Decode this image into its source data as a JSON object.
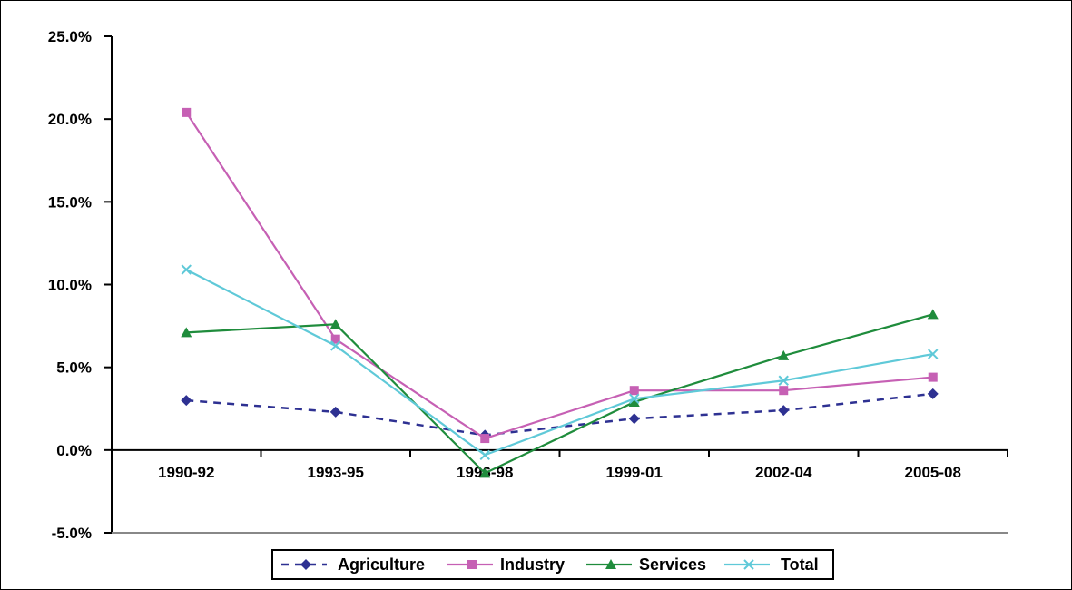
{
  "chart_data": {
    "type": "line",
    "title": "",
    "xlabel": "",
    "ylabel": "",
    "categories": [
      "1990-92",
      "1993-95",
      "1996-98",
      "1999-01",
      "2002-04",
      "2005-08"
    ],
    "y_ticks": [
      "25.0%",
      "20.0%",
      "15.0%",
      "10.0%",
      "5.0%",
      "0.0%",
      "-5.0%"
    ],
    "ylim": [
      -5,
      25
    ],
    "grid": false,
    "legend_position": "bottom",
    "series": [
      {
        "name": "Agriculture",
        "values": [
          3.0,
          2.3,
          0.9,
          1.9,
          2.4,
          3.4
        ],
        "color": "#2e3192",
        "marker": "diamond",
        "line": "dashed"
      },
      {
        "name": "Industry",
        "values": [
          20.4,
          6.7,
          0.7,
          3.6,
          3.6,
          4.4
        ],
        "color": "#c660b4",
        "marker": "square",
        "line": "solid"
      },
      {
        "name": "Services",
        "values": [
          7.1,
          7.6,
          -1.4,
          2.9,
          5.7,
          8.2
        ],
        "color": "#1f8c3c",
        "marker": "triangle",
        "line": "solid"
      },
      {
        "name": "Total",
        "values": [
          10.9,
          6.3,
          -0.3,
          3.1,
          4.2,
          5.8
        ],
        "color": "#5fc9d8",
        "marker": "x",
        "line": "solid"
      }
    ]
  }
}
